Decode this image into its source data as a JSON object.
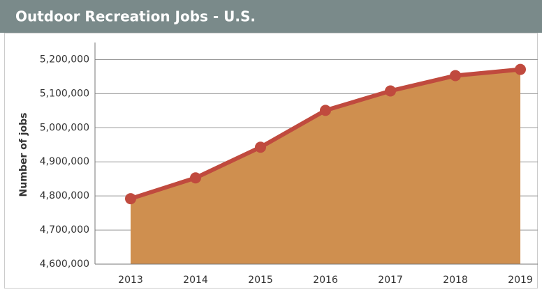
{
  "chart_data": {
    "type": "area-line",
    "title": "Outdoor Recreation Jobs - U.S.",
    "y_label": "Number of jobs",
    "categories": [
      "2013",
      "2014",
      "2015",
      "2016",
      "2017",
      "2018",
      "2019"
    ],
    "values": [
      4792000,
      4853000,
      4943000,
      5051000,
      5108000,
      5153000,
      5171000
    ],
    "line_color": "#c04a3e",
    "area_color": "#cf8f4f",
    "ylim": [
      4600000,
      5250000
    ],
    "yticks": [
      {
        "value": 4600000,
        "label": "4,600,000"
      },
      {
        "value": 4700000,
        "label": "4,700,000"
      },
      {
        "value": 4800000,
        "label": "4,800,000"
      },
      {
        "value": 4900000,
        "label": "4,900,000"
      },
      {
        "value": 5000000,
        "label": "5,000,000"
      },
      {
        "value": 5100000,
        "label": "5,100,000"
      },
      {
        "value": 5200000,
        "label": "5,200,000"
      }
    ],
    "grid": true
  }
}
